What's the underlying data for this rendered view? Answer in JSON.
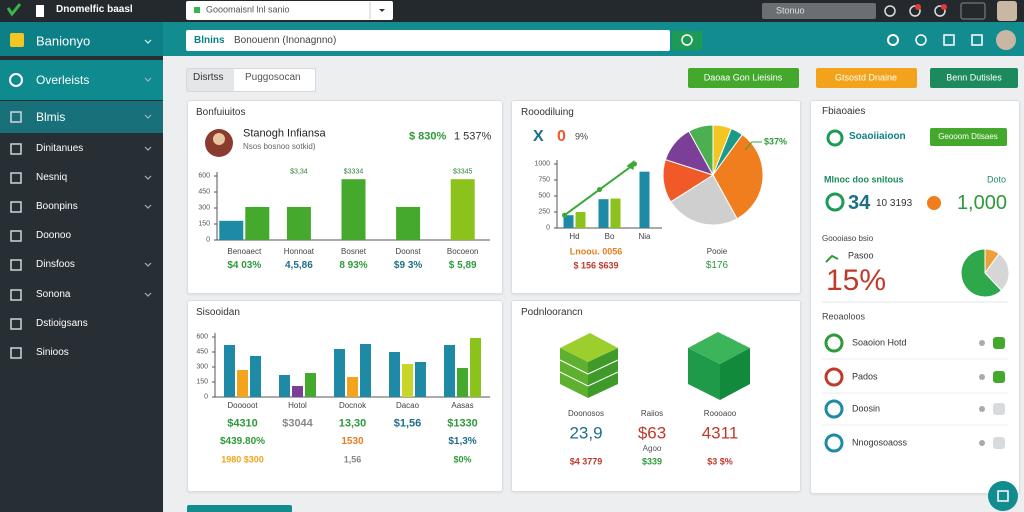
{
  "browser": {
    "tab": "Dnomelfic baasl",
    "url": "Gooomaisnl lnl sanio",
    "search": "Stonuo"
  },
  "app": {
    "name": "Banionyo",
    "search_tag": "Blnins",
    "search": "Bonouenn (Inonagnno)"
  },
  "sidebar": [
    "Overleists",
    "Blmis",
    "Dinitanues",
    "Nesniq",
    "Boonpins",
    "Doonoo",
    "Dinsfoos",
    "Sonona",
    "Dstioigsans",
    "Sinioos"
  ],
  "tabs": [
    "Disrtss",
    "Puggosocan"
  ],
  "actions": [
    "Daoaa Gon Lieisins",
    "Gtsostd Dnaine",
    "Benn Dutisles"
  ],
  "panel1": {
    "title": "Bonfuiuitos",
    "name": "Stanogh Infiansa",
    "subtitle": "Nsos bosnoo sotkid)",
    "stat1": "$ 830%",
    "stat2": "1 537%",
    "chart": {
      "type": "bar",
      "categories": [
        "Benoaect",
        "Honnoat",
        "Bosnet",
        "Doonst",
        "Bocoeon"
      ],
      "ylim": [
        0,
        600
      ],
      "yticks": [
        0,
        150,
        300,
        450,
        600
      ],
      "series": [
        {
          "color": "#1e8aa6",
          "values": [
            180,
            null,
            null,
            null,
            null
          ]
        },
        {
          "color": "#45a92e",
          "values": [
            310,
            310,
            570,
            310,
            null
          ]
        },
        {
          "color": "#8cc21c",
          "values": [
            null,
            null,
            null,
            null,
            570
          ]
        }
      ],
      "bar_labels": [
        "$3,34",
        "$3334",
        "$3345"
      ]
    },
    "totals": [
      "$4 03%",
      "4,5,86",
      "8 93%",
      "$9 3%",
      "$ 5,89"
    ]
  },
  "panel2": {
    "title": "Rooodiluing",
    "kpi": [
      "X",
      "0",
      "9%"
    ],
    "chart": {
      "type": "bar",
      "categories": [
        "Hd",
        "Bo",
        "Nia"
      ],
      "ylim": [
        0,
        1000
      ],
      "yticks": [
        0,
        250,
        500,
        750,
        1000
      ],
      "series": [
        {
          "color": "#1e8aa6",
          "values": [
            200,
            450,
            880
          ]
        },
        {
          "color": "#8cc21c",
          "values": [
            250,
            460,
            null
          ]
        }
      ],
      "line": {
        "color": "#3aa935",
        "values": [
          200,
          600,
          1000
        ]
      }
    },
    "footer": [
      "Lnoou. 0056",
      "$ 156 $639"
    ],
    "pie": {
      "type": "pie",
      "values": [
        6,
        4,
        32,
        24,
        14,
        12,
        8
      ],
      "colors": [
        "#f3c623",
        "#1b9a8a",
        "#f07d1e",
        "#cfcfcf",
        "#f05a28",
        "#7b3f98",
        "#4caf50"
      ],
      "label": "$37%",
      "caption": "Pooie",
      "caption_value": "$176"
    }
  },
  "panel3": {
    "title": "Fbiaoaies",
    "account": "Soaoiiaioon",
    "button": "Geooom Dtisaes",
    "metric_label": "Mlnoc doo snitous",
    "metric_side": "Doto",
    "count": "34",
    "count_sub": "10 3193",
    "total": "1,000",
    "section": "Goooiaso bsio",
    "rate_label": "Pasoo",
    "rate": "15%",
    "donut": {
      "type": "pie",
      "values": [
        10,
        28,
        62
      ],
      "colors": [
        "#f0a03a",
        "#d6d6d6",
        "#2ea84a"
      ]
    },
    "list_title": "Reoaoloos",
    "list": [
      "Soaoion Hotd",
      "Pados",
      "Doosin",
      "Nnogosoaoss"
    ]
  },
  "panel4": {
    "title": "Sisooidan",
    "chart": {
      "type": "bar",
      "categories": [
        "Dooooot",
        "Hotol",
        "Docnok",
        "Dacao",
        "Aasas"
      ],
      "ylim": [
        0,
        600
      ],
      "yticks": [
        0,
        150,
        300,
        450,
        600
      ],
      "series": [
        {
          "color": "#1e8aa6",
          "values": [
            520,
            220,
            480,
            450,
            520
          ]
        },
        {
          "colors": [
            "#f4a31c",
            "#7b3f98",
            "#f4a31c",
            "#c8d62a",
            "#45a92e"
          ],
          "values": [
            270,
            110,
            200,
            330,
            290
          ]
        },
        {
          "colors": [
            "#1e8aa6",
            "#45a92e",
            "#1e8aa6",
            "#1e8aa6",
            "#8cc21c"
          ],
          "values": [
            410,
            240,
            530,
            350,
            590
          ]
        }
      ]
    },
    "rows": [
      [
        "$4310",
        "$3044",
        "13,30",
        "$1,56",
        "$1330"
      ],
      [
        "$439.80%",
        null,
        "1530",
        null,
        "$1,3%"
      ],
      [
        "1980 $300",
        null,
        "1,56",
        null,
        "$0%"
      ]
    ]
  },
  "panel5": {
    "title": "Podnloorancn",
    "stats": [
      {
        "label": "Doonosos",
        "value": "23,9",
        "sub": "$4 3779"
      },
      {
        "label": "Raiios",
        "value": "$63",
        "note": "Agoo",
        "sub": "$339"
      },
      {
        "label": "Roooaoo",
        "value": "4311",
        "sub": "$3 $%"
      }
    ]
  }
}
